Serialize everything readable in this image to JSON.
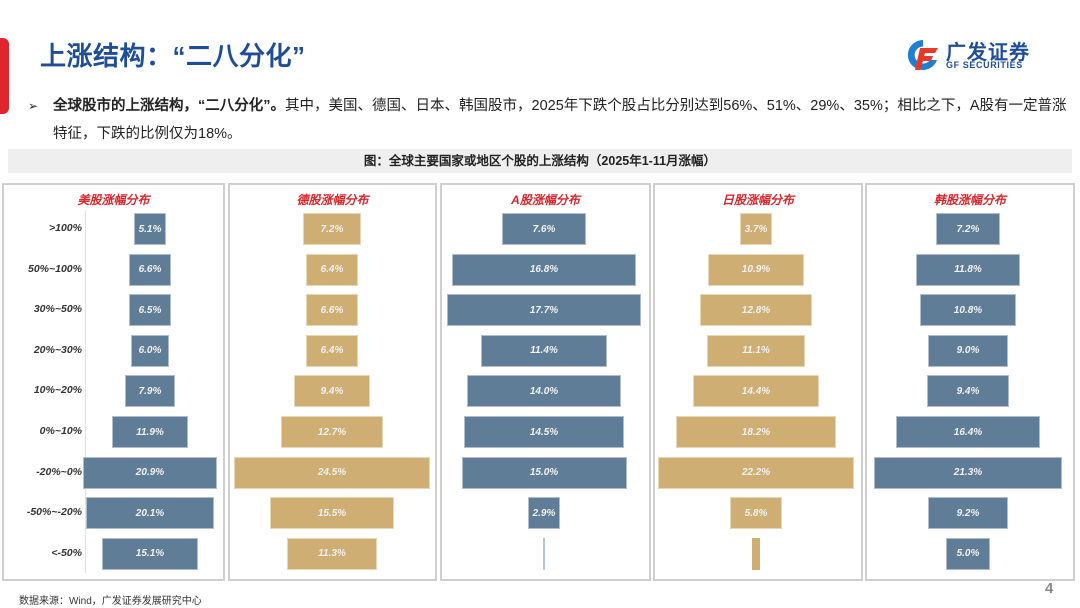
{
  "header": {
    "title": "上涨结构：“二八分化”",
    "logo_cn": "广发证券",
    "logo_en": "GF SECURITIES"
  },
  "bullet": {
    "bold": "全球股市的上涨结构，“二八分化”。",
    "text": "其中，美国、德国、日本、韩国股市，2025年下跌个股占比分别达到56%、51%、29%、35%；相比之下，A股有一定普涨特征，下跌的比例仅为18%。"
  },
  "figure": {
    "caption": "图：全球主要国家或地区个股的上涨结构（2025年1-11月涨幅）"
  },
  "footer": {
    "source": "数据来源：Wind，广发证券发展研究中心",
    "page": "4"
  },
  "colors": {
    "blue_bar": "#607d98",
    "gold_bar": "#cfae73",
    "title_blue": "#1f4e97",
    "panel_title_red": "#d9262c",
    "accent_red": "#e0262d"
  },
  "chart_data": {
    "type": "bar",
    "orientation": "horizontal-centered (population-pyramid style)",
    "title": "全球主要国家或地区个股的上涨结构（2025年1-11月涨幅）",
    "categories": [
      ">100%",
      "50%~100%",
      "30%~50%",
      "20%~30%",
      "10%~20%",
      "0%~10%",
      "-20%~0%",
      "-50%~-20%",
      "<-50%"
    ],
    "unit": "%",
    "series": [
      {
        "name": "美股涨幅分布",
        "color": "#607d98",
        "values": [
          5.1,
          6.6,
          6.5,
          6.0,
          7.9,
          11.9,
          20.9,
          20.1,
          15.1
        ],
        "labels": [
          "5.1%",
          "6.6%",
          "6.5%",
          "6.0%",
          "7.9%",
          "11.9%",
          "20.9%",
          "20.1%",
          "15.1%"
        ]
      },
      {
        "name": "德股涨幅分布",
        "color": "#cfae73",
        "values": [
          7.2,
          6.4,
          6.6,
          6.4,
          9.4,
          12.7,
          24.5,
          15.5,
          11.3
        ],
        "labels": [
          "7.2%",
          "6.4%",
          "6.6%",
          "6.4%",
          "9.4%",
          "12.7%",
          "24.5%",
          "15.5%",
          "11.3%"
        ]
      },
      {
        "name": "A股涨幅分布",
        "color": "#607d98",
        "values": [
          7.6,
          16.8,
          17.7,
          11.4,
          14.0,
          14.5,
          15.0,
          2.9,
          0.1
        ],
        "labels": [
          "7.6%",
          "16.8%",
          "17.7%",
          "11.4%",
          "14.0%",
          "14.5%",
          "15.0%",
          "2.9%",
          ""
        ]
      },
      {
        "name": "日股涨幅分布",
        "color": "#cfae73",
        "values": [
          3.7,
          10.9,
          12.8,
          11.1,
          14.4,
          18.2,
          22.2,
          5.8,
          0.8
        ],
        "labels": [
          "3.7%",
          "10.9%",
          "12.8%",
          "11.1%",
          "14.4%",
          "18.2%",
          "22.2%",
          "5.8%",
          ""
        ]
      },
      {
        "name": "韩股涨幅分布",
        "color": "#607d98",
        "values": [
          7.2,
          11.8,
          10.8,
          9.0,
          9.4,
          16.4,
          21.3,
          9.2,
          5.0
        ],
        "labels": [
          "7.2%",
          "11.8%",
          "10.8%",
          "9.0%",
          "9.4%",
          "16.4%",
          "21.3%",
          "9.2%",
          "5.0%"
        ]
      }
    ],
    "xlabel": "",
    "ylabel": "",
    "grid": false,
    "legend": "per-panel titles"
  }
}
